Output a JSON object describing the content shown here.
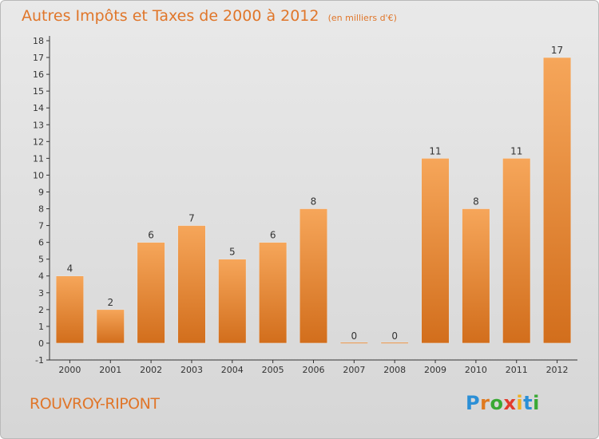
{
  "header": {
    "title": "Autres Impôts et Taxes de 2000 à 2012",
    "unit": "(en milliers d'€)"
  },
  "commune": "ROUVROY-RIPONT",
  "logo": {
    "letters": [
      "P",
      "r",
      "o",
      "x",
      "i",
      "t",
      "i"
    ],
    "colors": [
      "#2b8fd6",
      "#e07a1f",
      "#3aa935",
      "#e23b2d",
      "#f0b020",
      "#2b8fd6",
      "#3aa935"
    ]
  },
  "colors": {
    "bar_top": "#f6a65a",
    "bar_bottom": "#d26e1c",
    "title": "#e0762a"
  },
  "chart_data": {
    "type": "bar",
    "categories": [
      "2000",
      "2001",
      "2002",
      "2003",
      "2004",
      "2005",
      "2006",
      "2007",
      "2008",
      "2009",
      "2010",
      "2011",
      "2012"
    ],
    "values": [
      4,
      2,
      6,
      7,
      5,
      6,
      8,
      0,
      0,
      11,
      8,
      11,
      17
    ],
    "title": "Autres Impôts et Taxes de 2000 à 2012",
    "subtitle": "(en milliers d'€)",
    "xlabel": "",
    "ylabel": "",
    "ylim": [
      -1,
      18
    ],
    "yticks": [
      -1,
      0,
      1,
      2,
      3,
      4,
      5,
      6,
      7,
      8,
      9,
      10,
      11,
      12,
      13,
      14,
      15,
      16,
      17,
      18
    ],
    "grid": false,
    "legend": "none"
  }
}
